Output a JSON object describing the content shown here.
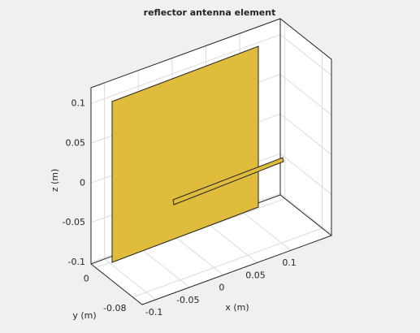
{
  "chart_data": {
    "type": "antenna3d",
    "title": "reflector antenna element",
    "xlabel": "x (m)",
    "ylabel": "y (m)",
    "zlabel": "z (m)",
    "xlim": [
      -0.12,
      0.16
    ],
    "ylim": [
      -0.1,
      0.01
    ],
    "zlim": [
      -0.102,
      0.12
    ],
    "xticks": [
      -0.1,
      -0.05,
      0,
      0.05,
      0.1
    ],
    "yticks": [
      -0.08,
      0
    ],
    "zticks": [
      -0.1,
      -0.05,
      0,
      0.05,
      0.1
    ],
    "grid": true,
    "color": "#e0bc3c"
  }
}
